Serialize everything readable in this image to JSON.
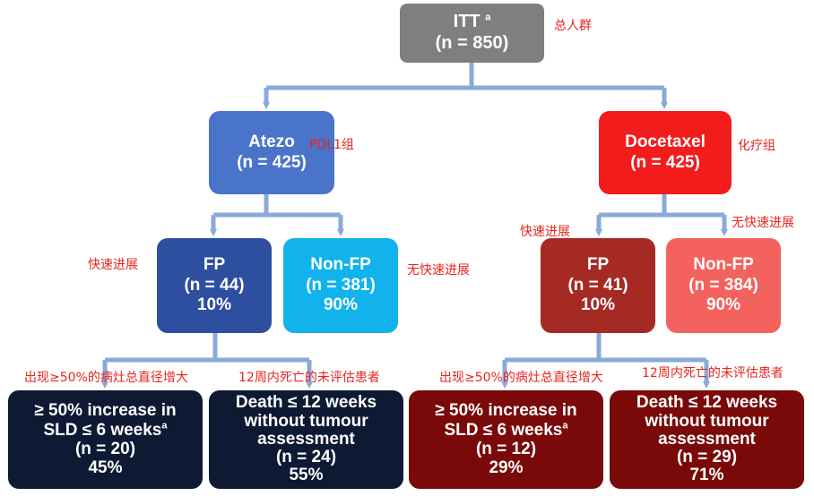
{
  "itt": {
    "label": "ITT",
    "sup": "a",
    "n": "(n = 850)",
    "note": "总人群"
  },
  "atezo": {
    "label": "Atezo",
    "n": "(n = 425)",
    "note": "PDL1组"
  },
  "docetaxel": {
    "label": "Docetaxel",
    "n": "(n = 425)",
    "note": "化疗组"
  },
  "atezo_fp": {
    "label": "FP",
    "n": "(n = 44)",
    "pct": "10%",
    "note": "快速进展"
  },
  "atezo_nonfp": {
    "label": "Non-FP",
    "n": "(n = 381)",
    "pct": "90%",
    "note": "无快速进展"
  },
  "doce_fp": {
    "label": "FP",
    "n": "(n = 41)",
    "pct": "10%",
    "note": "快速进展"
  },
  "doce_nonfp": {
    "label": "Non-FP",
    "n": "(n = 384)",
    "pct": "90%",
    "note": "无快速进展"
  },
  "atezo_sld": {
    "line1": "≥ 50% increase in",
    "line2": "SLD ≤ 6 weeks",
    "sup": "a",
    "n": "(n = 20)",
    "pct": "45%",
    "note": "出现≥50%的病灶总直径增大"
  },
  "atezo_death": {
    "line1": "Death ≤ 12 weeks",
    "line2": "without tumour",
    "line3": "assessment",
    "n": "(n = 24)",
    "pct": "55%",
    "note": "12周内死亡的未评估患者"
  },
  "doce_sld": {
    "line1": "≥ 50% increase in",
    "line2": "SLD ≤ 6 weeks",
    "sup": "a",
    "n": "(n = 12)",
    "pct": "29%",
    "note": "出现≥50%的病灶总直径增大"
  },
  "doce_death": {
    "line1": "Death ≤ 12 weeks",
    "line2": "without tumour",
    "line3": "assessment",
    "n": "(n = 29)",
    "pct": "71%",
    "note": "12周内死亡的未评估患者"
  },
  "colors": {
    "itt": "#7f7f7f",
    "atezo": "#4a74c9",
    "atezo_fp": "#2e4fa0",
    "atezo_nonfp": "#12b2ec",
    "docetaxel": "#f21c1c",
    "doce_fp": "#a62a24",
    "doce_nonfp": "#f4625d",
    "navy": "#0e1a33",
    "maroon": "#7a0a0a",
    "connector": "#8aaad8",
    "note": "#e8251f"
  }
}
